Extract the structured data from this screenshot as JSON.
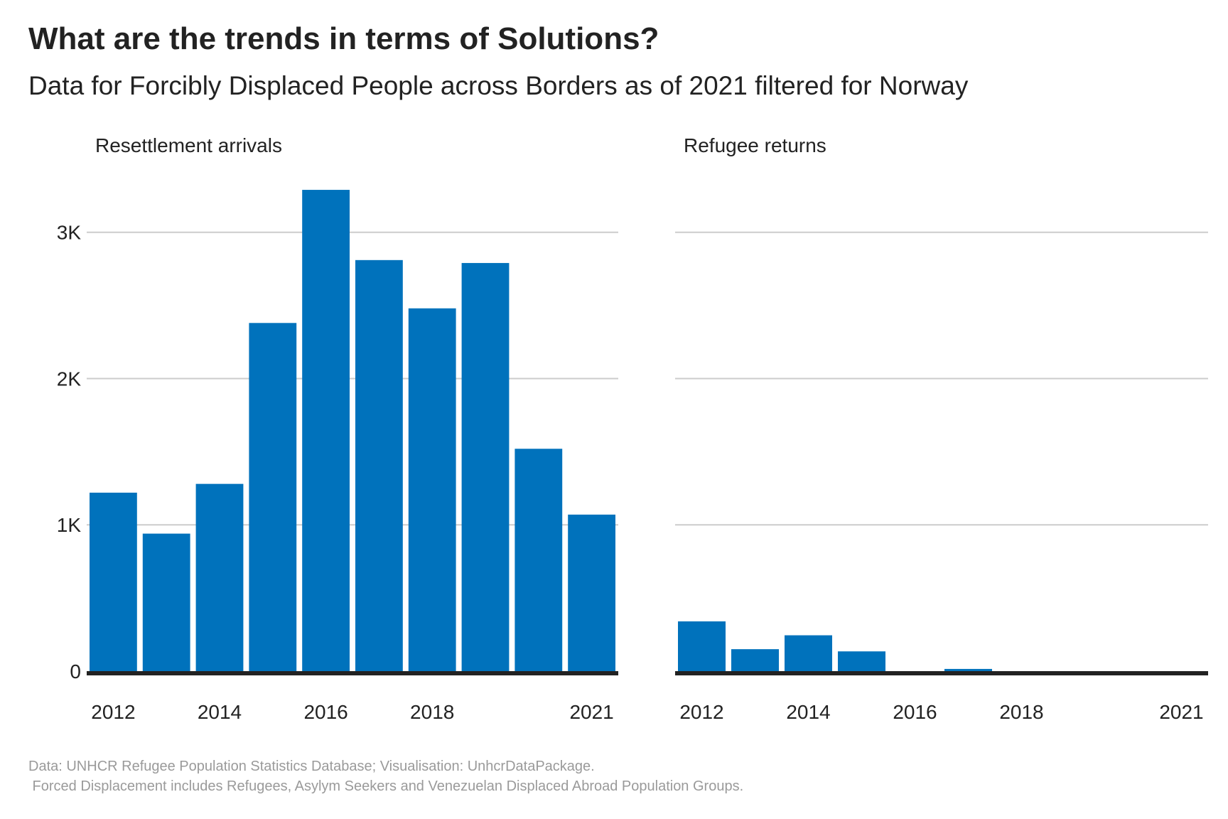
{
  "header": {
    "title": "What are the trends in terms of Solutions?",
    "subtitle": "Data for Forcibly Displaced People across Borders as of 2021 filtered for Norway"
  },
  "caption": {
    "line1": "Data: UNHCR Refugee Population Statistics Database; Visualisation: UnhcrDataPackage.",
    "line2": " Forced Displacement includes Refugees, Asylym Seekers and Venezuelan Displaced Abroad Population Groups."
  },
  "colors": {
    "bar": "#0072BC",
    "grid": "#cccccc",
    "baseline": "#222222"
  },
  "chart_data": [
    {
      "type": "bar",
      "title": "Resettlement arrivals",
      "categories": [
        2012,
        2013,
        2014,
        2015,
        2016,
        2017,
        2018,
        2019,
        2020,
        2021
      ],
      "values": [
        1220,
        940,
        1280,
        2380,
        3290,
        2810,
        2480,
        2790,
        1520,
        1070
      ],
      "x_tick_labels": [
        "2012",
        "2014",
        "2016",
        "2018",
        "2021"
      ],
      "y_ticks": [
        0,
        1000,
        2000,
        3000
      ],
      "y_tick_labels": [
        "0",
        "1K",
        "2K",
        "3K"
      ],
      "ylim": [
        0,
        3300
      ],
      "grid": true
    },
    {
      "type": "bar",
      "title": "Refugee returns",
      "categories": [
        2012,
        2013,
        2014,
        2015,
        2016,
        2017,
        2018,
        2019,
        2020,
        2021
      ],
      "values": [
        340,
        150,
        245,
        135,
        0,
        15,
        0,
        0,
        0,
        0
      ],
      "x_tick_labels": [
        "2012",
        "2014",
        "2016",
        "2018",
        "2021"
      ],
      "y_ticks": [
        0,
        1000,
        2000,
        3000
      ],
      "y_tick_labels": [
        "",
        "",
        "",
        ""
      ],
      "ylim": [
        0,
        3300
      ],
      "grid": true
    }
  ]
}
